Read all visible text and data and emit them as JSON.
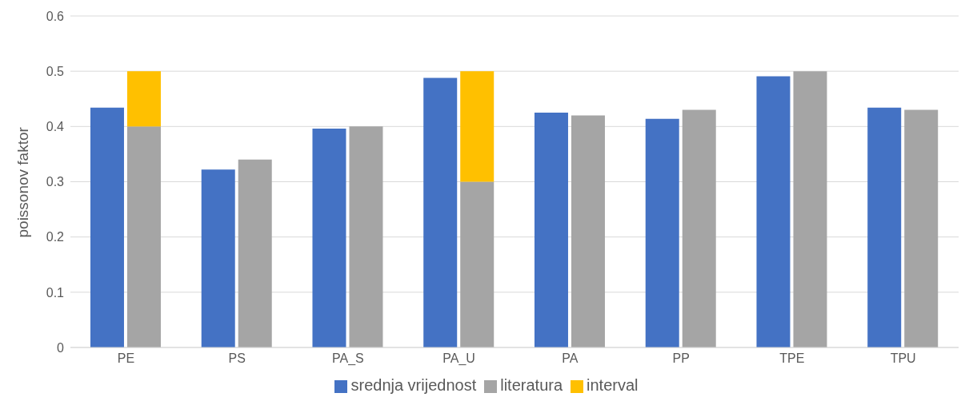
{
  "chart_data": {
    "type": "bar",
    "ylabel": "poissonov faktor",
    "categories": [
      "PE",
      "PS",
      "PA_S",
      "PA_U",
      "PA",
      "PP",
      "TPE",
      "TPU"
    ],
    "series": [
      {
        "name": "srednja vrijednost",
        "color": "#4472c4",
        "values": [
          0.434,
          0.322,
          0.396,
          0.488,
          0.425,
          0.414,
          0.491,
          0.434
        ]
      },
      {
        "name": "literatura",
        "color": "#a5a5a5",
        "values": [
          0.4,
          0.34,
          0.4,
          0.3,
          0.42,
          0.43,
          0.5,
          0.43
        ]
      },
      {
        "name": "interval",
        "color": "#ffc000",
        "values": [
          0.1,
          null,
          null,
          0.2,
          null,
          null,
          null,
          null
        ],
        "base": [
          0.4,
          null,
          null,
          0.3,
          null,
          null,
          null,
          null
        ]
      }
    ],
    "ylim": [
      0,
      0.6
    ],
    "yticks": [
      0,
      0.1,
      0.2,
      0.3,
      0.4,
      0.5,
      0.6
    ],
    "grid": "y",
    "legend": "bottom"
  }
}
